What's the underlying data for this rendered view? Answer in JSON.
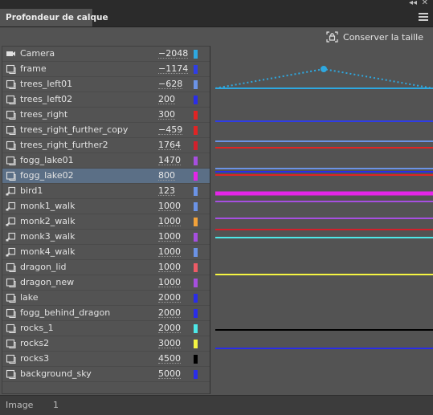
{
  "window": {
    "collapse_label": "◂◂",
    "close_label": "✕"
  },
  "panel": {
    "tab_title": "Profondeur de calque",
    "keep_size_label": "Conserver la taille"
  },
  "layers": [
    {
      "name": "Camera",
      "depth": "−2048",
      "color": "#2ea8e0",
      "icon": "camera-icon"
    },
    {
      "name": "frame",
      "depth": "−1174",
      "color": "#2f3de6",
      "icon": "layer-icon"
    },
    {
      "name": "trees_left01",
      "depth": "−628",
      "color": "#6b93e6",
      "icon": "layer-icon"
    },
    {
      "name": "trees_left02",
      "depth": "200",
      "color": "#2a2de8",
      "icon": "layer-icon"
    },
    {
      "name": "trees_right",
      "depth": "300",
      "color": "#e02424",
      "icon": "layer-icon"
    },
    {
      "name": "trees_right_further_copy",
      "depth": "−459",
      "color": "#e02424",
      "icon": "layer-icon"
    },
    {
      "name": "trees_right_further2",
      "depth": "1764",
      "color": "#d2202c",
      "icon": "layer-icon"
    },
    {
      "name": "fogg_lake01",
      "depth": "1470",
      "color": "#a64fe0",
      "icon": "layer-icon"
    },
    {
      "name": "fogg_lake02",
      "depth": "800",
      "color": "#e426e8",
      "icon": "layer-icon",
      "selected": true
    },
    {
      "name": "bird1",
      "depth": "123",
      "color": "#6b93e6",
      "icon": "graphic-icon"
    },
    {
      "name": "monk1_walk",
      "depth": "1000",
      "color": "#6b93e6",
      "icon": "graphic-icon"
    },
    {
      "name": "monk2_walk",
      "depth": "1000",
      "color": "#f2a23a",
      "icon": "graphic-icon"
    },
    {
      "name": "monk3_walk",
      "depth": "1000",
      "color": "#a64fe0",
      "icon": "graphic-icon"
    },
    {
      "name": "monk4_walk",
      "depth": "1000",
      "color": "#6b93e6",
      "icon": "graphic-icon"
    },
    {
      "name": "dragon_lid",
      "depth": "1000",
      "color": "#ee5b66",
      "icon": "layer-icon"
    },
    {
      "name": "dragon_new",
      "depth": "1000",
      "color": "#a64fe0",
      "icon": "layer-icon"
    },
    {
      "name": "lake",
      "depth": "2000",
      "color": "#2a2de8",
      "icon": "layer-icon"
    },
    {
      "name": "fogg_behind_dragon",
      "depth": "2000",
      "color": "#2a2de8",
      "icon": "layer-icon"
    },
    {
      "name": "rocks_1",
      "depth": "2000",
      "color": "#4de8e8",
      "icon": "layer-icon"
    },
    {
      "name": "rocks2",
      "depth": "3000",
      "color": "#f5f542",
      "icon": "layer-icon"
    },
    {
      "name": "rocks3",
      "depth": "4500",
      "color": "#000000",
      "icon": "layer-icon"
    },
    {
      "name": "background_sky",
      "depth": "5000",
      "color": "#2a2de8",
      "icon": "layer-icon"
    }
  ],
  "status": {
    "frame_label": "Image",
    "frame_value": "1"
  },
  "colors": {
    "selection": "#5b6f86",
    "camera_path": "#2ea8e0"
  }
}
